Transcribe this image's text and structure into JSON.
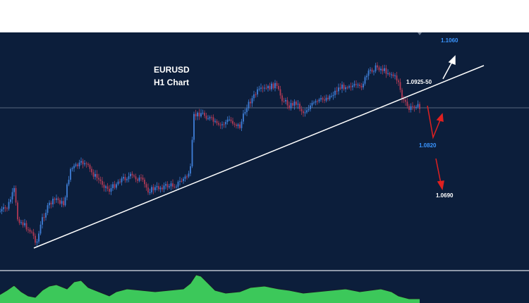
{
  "chart": {
    "symbol": "EURUSD",
    "timeframe": "H1 Chart",
    "levels": {
      "target_high": "1.1060",
      "resistance": "1.0925-50",
      "support": "1.0820",
      "target_low": "1.0690"
    }
  }
}
